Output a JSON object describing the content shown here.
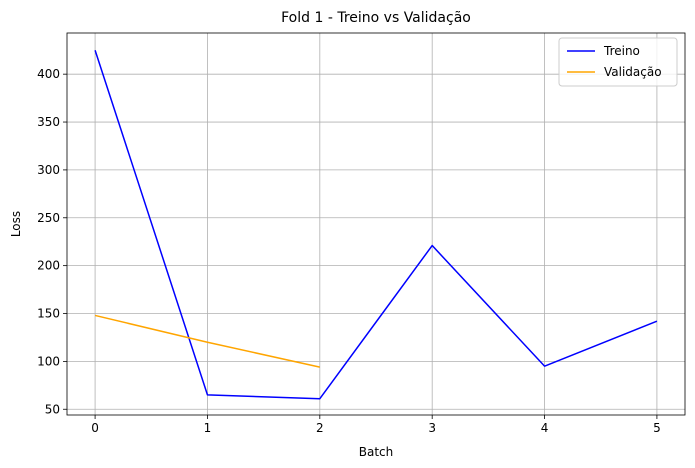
{
  "chart_data": {
    "type": "line",
    "title": "Fold 1 - Treino vs Validação",
    "xlabel": "Batch",
    "ylabel": "Loss",
    "xlim": [
      -0.25,
      5.25
    ],
    "ylim": [
      44,
      443
    ],
    "xticks": [
      0,
      1,
      2,
      3,
      4,
      5
    ],
    "yticks": [
      50,
      100,
      150,
      200,
      250,
      300,
      350,
      400
    ],
    "grid": true,
    "legend_position": "top-right",
    "series": [
      {
        "name": "Treino",
        "color": "#0000ff",
        "x": [
          0,
          1,
          2,
          3,
          4,
          5
        ],
        "y": [
          425,
          65,
          61,
          221,
          95,
          142
        ]
      },
      {
        "name": "Validação",
        "color": "#ffa500",
        "x": [
          0,
          1,
          2
        ],
        "y": [
          148,
          120,
          94
        ]
      }
    ]
  }
}
